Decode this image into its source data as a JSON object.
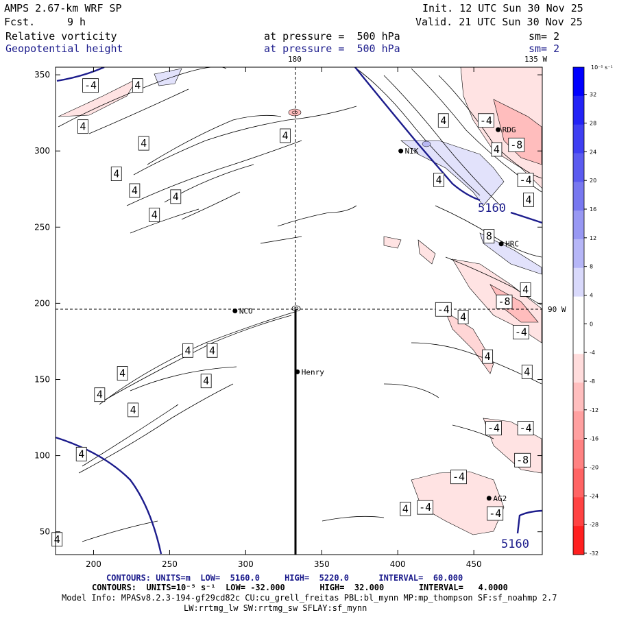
{
  "header": {
    "title": "AMPS 2.67-km WRF SP",
    "fcst_label": "Fcst.",
    "fcst_value": "9 h",
    "init": "Init. 12 UTC Sun 30 Nov 25",
    "valid": "Valid. 21 UTC Sun 30 Nov 25",
    "field1_name": "Relative vorticity",
    "field1_level": "at pressure =  500 hPa",
    "field1_sm": "sm= 2",
    "field2_name": "Geopotential height",
    "field2_level": "at pressure =  500 hPa",
    "field2_sm": "sm= 2"
  },
  "map_labels": {
    "lon_180": "180",
    "lon_135w": "135 W",
    "lon_90w": "90 W",
    "stations": [
      {
        "name": "NCO",
        "x": 293,
        "y": 195
      },
      {
        "name": "Henry",
        "x": 334,
        "y": 155
      },
      {
        "name": "RDG",
        "x": 466,
        "y": 314
      },
      {
        "name": "HRC",
        "x": 468,
        "y": 239
      },
      {
        "name": "AG2",
        "x": 460,
        "y": 72
      },
      {
        "name": "NIK",
        "x": 402,
        "y": 300
      }
    ]
  },
  "colors": {
    "height_contour": "#1c1c8c",
    "pos_light": "#dfe0ff",
    "neg_light": "#ffe6e6",
    "neg_mid": "#ffb8b8"
  },
  "chart_data": {
    "type": "contour-map",
    "xlim": [
      175,
      495
    ],
    "ylim": [
      35,
      355
    ],
    "xticks": [
      200,
      250,
      300,
      350,
      400,
      450
    ],
    "yticks": [
      50,
      100,
      150,
      200,
      250,
      300,
      350
    ],
    "height_contour_labels": [
      "5160",
      "5160"
    ],
    "vorticity_labels": [
      {
        "text": "4",
        "x": 229,
        "y": 343
      },
      {
        "text": "-4",
        "x": 198,
        "y": 343
      },
      {
        "text": "4",
        "x": 193,
        "y": 316
      },
      {
        "text": "4",
        "x": 233,
        "y": 305
      },
      {
        "text": "4",
        "x": 215,
        "y": 285
      },
      {
        "text": "4",
        "x": 227,
        "y": 274
      },
      {
        "text": "4",
        "x": 254,
        "y": 270
      },
      {
        "text": "4",
        "x": 240,
        "y": 258
      },
      {
        "text": "4",
        "x": 326,
        "y": 310
      },
      {
        "text": "4",
        "x": 430,
        "y": 320
      },
      {
        "text": "-4",
        "x": 458,
        "y": 320
      },
      {
        "text": "4",
        "x": 465,
        "y": 301
      },
      {
        "text": "-8",
        "x": 478,
        "y": 304
      },
      {
        "text": "4",
        "x": 427,
        "y": 281
      },
      {
        "text": "-4",
        "x": 484,
        "y": 281
      },
      {
        "text": "4",
        "x": 486,
        "y": 268
      },
      {
        "text": "8",
        "x": 460,
        "y": 244
      },
      {
        "text": "4",
        "x": 484,
        "y": 209
      },
      {
        "text": "-8",
        "x": 470,
        "y": 201
      },
      {
        "text": "-4",
        "x": 430,
        "y": 196
      },
      {
        "text": "4",
        "x": 443,
        "y": 191
      },
      {
        "text": "-4",
        "x": 481,
        "y": 181
      },
      {
        "text": "4",
        "x": 459,
        "y": 165
      },
      {
        "text": "4",
        "x": 485,
        "y": 155
      },
      {
        "text": "4",
        "x": 278,
        "y": 169
      },
      {
        "text": "4",
        "x": 262,
        "y": 169
      },
      {
        "text": "4",
        "x": 219,
        "y": 154
      },
      {
        "text": "4",
        "x": 274,
        "y": 149
      },
      {
        "text": "4",
        "x": 204,
        "y": 140
      },
      {
        "text": "4",
        "x": 226,
        "y": 130
      },
      {
        "text": "4",
        "x": 192,
        "y": 101
      },
      {
        "text": "-4",
        "x": 463,
        "y": 118
      },
      {
        "text": "-4",
        "x": 484,
        "y": 118
      },
      {
        "text": "-8",
        "x": 482,
        "y": 97
      },
      {
        "text": "-4",
        "x": 440,
        "y": 86
      },
      {
        "text": "4",
        "x": 405,
        "y": 65
      },
      {
        "text": "-4",
        "x": 418,
        "y": 66
      },
      {
        "text": "-4",
        "x": 464,
        "y": 62
      },
      {
        "text": "4",
        "x": 176,
        "y": 45
      }
    ],
    "colorbar": {
      "unit_label": "10⁻⁵ s⁻¹",
      "levels": [
        32,
        28,
        24,
        20,
        16,
        12,
        8,
        4,
        0,
        -4,
        -8,
        -12,
        -16,
        -20,
        -24,
        -28,
        -32
      ],
      "colors": [
        "#0000ff",
        "#2323f6",
        "#3f3ff2",
        "#5b5bf0",
        "#7878f0",
        "#9898f3",
        "#b6b6f7",
        "#d9d9fb",
        "#ffffff",
        "#ffffff",
        "#ffdcdc",
        "#ffbebe",
        "#ffa0a0",
        "#ff8282",
        "#ff6464",
        "#ff4343",
        "#ff2020"
      ]
    }
  },
  "footer": {
    "line1": "CONTOURS: UNITS=m  LOW=  5160.0     HIGH=  5220.0      INTERVAL=  60.000",
    "line2": "CONTOURS:  UNITS=10⁻⁵ s⁻¹  LOW= -32.000       HIGH=  32.000       INTERVAL=   4.0000",
    "line3": "Model Info: MPASv8.2.3-194-gf29cd82c CU:cu_grell_freitas PBL:bl_mynn MP:mp_thompson SF:sf_noahmp 2.7",
    "line4": "LW:rrtmg_lw SW:rrtmg_sw SFLAY:sf_mynn"
  }
}
